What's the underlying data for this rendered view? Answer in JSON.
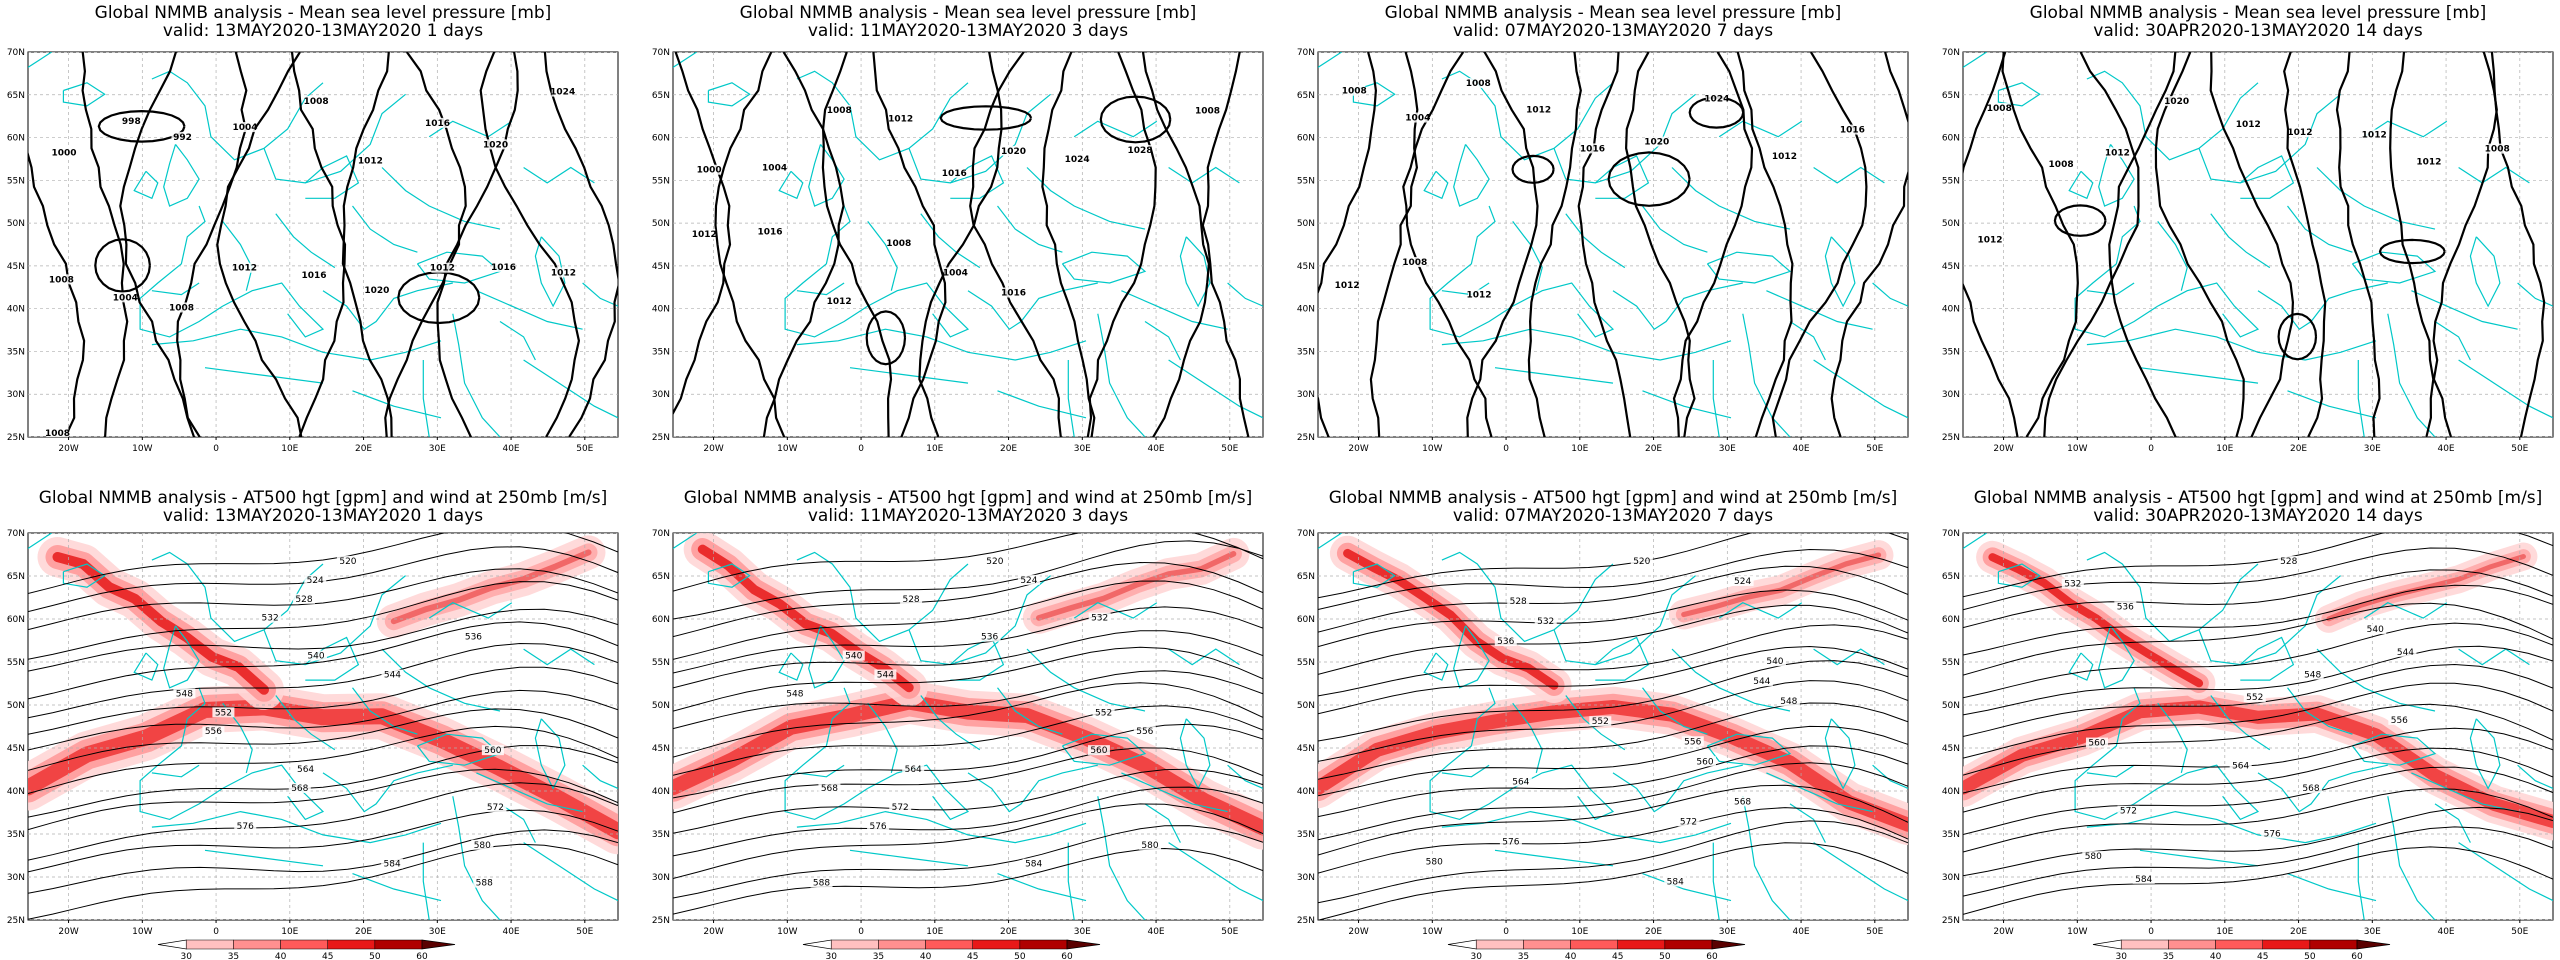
{
  "panels": [
    {
      "title": "Global NMMB analysis - Mean sea level pressure [mb]",
      "valid": "valid: 13MAY2020-13MAY2020   1 days",
      "kind": "mslp",
      "contour_labels": [
        "1000",
        "998",
        "992",
        "1004",
        "1008",
        "1012",
        "1016",
        "1020",
        "1024",
        "1008",
        "1004",
        "1008",
        "1012",
        "1016",
        "1020",
        "1012",
        "1016",
        "1012",
        "1008"
      ]
    },
    {
      "title": "Global NMMB analysis - Mean sea level pressure [mb]",
      "valid": "valid: 11MAY2020-13MAY2020   3 days",
      "kind": "mslp",
      "contour_labels": [
        "1000",
        "1004",
        "1008",
        "1012",
        "1016",
        "1020",
        "1024",
        "1028",
        "1008",
        "1012",
        "1016",
        "1012",
        "1008",
        "1004",
        "1016"
      ]
    },
    {
      "title": "Global NMMB analysis - Mean sea level pressure [mb]",
      "valid": "valid: 07MAY2020-13MAY2020   7 days",
      "kind": "mslp",
      "contour_labels": [
        "1008",
        "1004",
        "1008",
        "1012",
        "1016",
        "1020",
        "1024",
        "1012",
        "1016",
        "1012",
        "1008",
        "1012"
      ]
    },
    {
      "title": "Global NMMB analysis - Mean sea level pressure [mb]",
      "valid": "valid: 30APR2020-13MAY2020   14 days",
      "kind": "mslp",
      "contour_labels": [
        "1008",
        "1008",
        "1012",
        "1020",
        "1012",
        "1012",
        "1012",
        "1012",
        "1008",
        "1012"
      ]
    },
    {
      "title": "Global NMMB analysis - AT500 hgt [gpm] and wind at 250mb [m/s]",
      "valid": "valid: 13MAY2020-13MAY2020   1 days",
      "kind": "z500",
      "contour_labels": [
        "520",
        "524",
        "528",
        "532",
        "536",
        "540",
        "544",
        "548",
        "552",
        "556",
        "560",
        "564",
        "568",
        "572",
        "576",
        "580",
        "584",
        "588"
      ]
    },
    {
      "title": "Global NMMB analysis - AT500 hgt [gpm] and wind at 250mb [m/s]",
      "valid": "valid: 11MAY2020-13MAY2020   3 days",
      "kind": "z500",
      "contour_labels": [
        "520",
        "524",
        "528",
        "532",
        "536",
        "540",
        "544",
        "548",
        "552",
        "556",
        "560",
        "564",
        "568",
        "572",
        "576",
        "580",
        "584",
        "588"
      ]
    },
    {
      "title": "Global NMMB analysis - AT500 hgt [gpm] and wind at 250mb [m/s]",
      "valid": "valid: 07MAY2020-13MAY2020   7 days",
      "kind": "z500",
      "contour_labels": [
        "520",
        "524",
        "528",
        "532",
        "536",
        "540",
        "544",
        "548",
        "552",
        "556",
        "560",
        "564",
        "568",
        "572",
        "576",
        "580",
        "584"
      ]
    },
    {
      "title": "Global NMMB analysis - AT500 hgt [gpm] and wind at 250mb [m/s]",
      "valid": "valid: 30APR2020-13MAY2020   14 days",
      "kind": "z500",
      "contour_labels": [
        "528",
        "532",
        "536",
        "540",
        "544",
        "548",
        "552",
        "556",
        "560",
        "564",
        "568",
        "572",
        "576",
        "580",
        "584"
      ]
    }
  ],
  "lon_ticks": [
    "20W",
    "10W",
    "0",
    "10E",
    "20E",
    "30E",
    "40E",
    "50E"
  ],
  "lat_ticks": [
    "70N",
    "65N",
    "60N",
    "55N",
    "50N",
    "45N",
    "40N",
    "35N",
    "30N",
    "25N"
  ],
  "colorbar": {
    "ticks": [
      "30",
      "35",
      "40",
      "45",
      "50",
      "60"
    ],
    "colors": [
      "#ffe8e8",
      "#ffc0c0",
      "#ff9090",
      "#ff5a5a",
      "#e81818",
      "#b00000",
      "#5a0000"
    ]
  },
  "colors": {
    "coast": "#00c8c8",
    "grid": "#b0b0b0",
    "contour": "#000000"
  }
}
